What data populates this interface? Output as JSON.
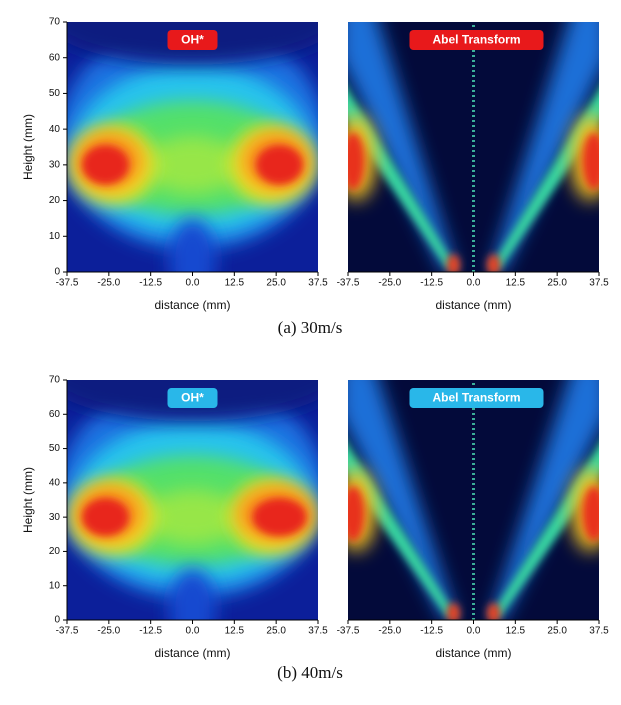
{
  "chart_data": [
    {
      "type": "heatmap",
      "title": "OH*",
      "badge_color": "#e8191b",
      "xlabel": "distance (mm)",
      "ylabel": "Height (mm)",
      "xlim": [
        -37.5,
        37.5
      ],
      "xticks": [
        -37.5,
        {
          "value": -25,
          "label": "-25.0"
        },
        -12.5,
        {
          "value": 0,
          "label": "0.0"
        },
        12.5,
        {
          "value": 25,
          "label": "25.0"
        },
        37.5
      ],
      "ylim": [
        0,
        70
      ],
      "yticks": [
        0,
        10,
        20,
        30,
        40,
        50,
        60,
        70
      ]
    },
    {
      "type": "heatmap",
      "title": "Abel Transform",
      "badge_color": "#e8191b",
      "xlabel": "distance (mm)",
      "xlim": [
        -37.5,
        37.5
      ],
      "xticks": [
        -37.5,
        {
          "value": -25,
          "label": "-25.0"
        },
        -12.5,
        {
          "value": 0,
          "label": "0.0"
        },
        12.5,
        {
          "value": 25,
          "label": "25.0"
        },
        37.5
      ],
      "ylim": [
        0,
        70
      ]
    },
    {
      "type": "heatmap",
      "title": "OH*",
      "badge_color": "#29b7e9",
      "xlabel": "distance (mm)",
      "ylabel": "Height (mm)",
      "xlim": [
        -37.5,
        37.5
      ],
      "xticks": [
        -37.5,
        {
          "value": -25,
          "label": "-25.0"
        },
        -12.5,
        {
          "value": 0,
          "label": "0.0"
        },
        12.5,
        {
          "value": 25,
          "label": "25.0"
        },
        37.5
      ],
      "ylim": [
        0,
        70
      ],
      "yticks": [
        0,
        10,
        20,
        30,
        40,
        50,
        60,
        70
      ]
    },
    {
      "type": "heatmap",
      "title": "Abel Transform",
      "badge_color": "#29b7e9",
      "xlabel": "distance (mm)",
      "xlim": [
        -37.5,
        37.5
      ],
      "xticks": [
        -37.5,
        {
          "value": -25,
          "label": "-25.0"
        },
        -12.5,
        {
          "value": 0,
          "label": "0.0"
        },
        12.5,
        {
          "value": 25,
          "label": "25.0"
        },
        37.5
      ],
      "ylim": [
        0,
        70
      ]
    }
  ],
  "captions": [
    "(a)  30m/s",
    "(b)  40m/s"
  ]
}
